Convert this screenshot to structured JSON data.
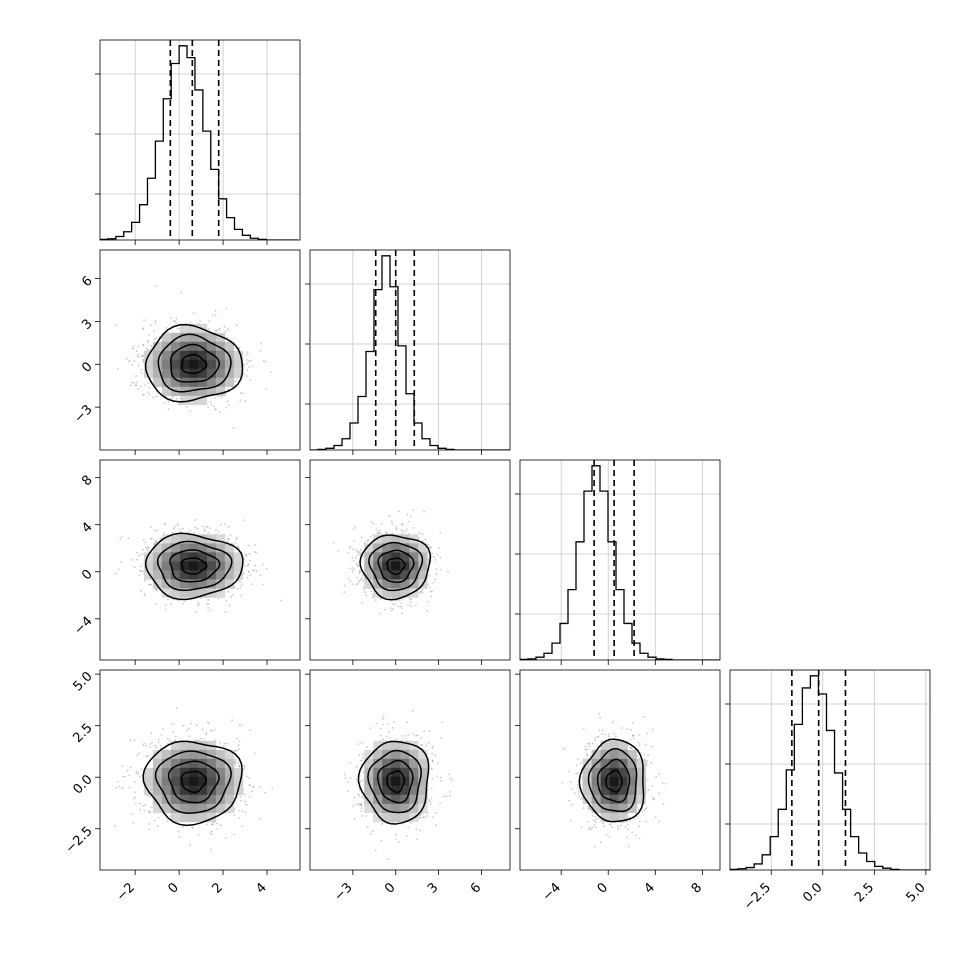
{
  "chart_data": {
    "type": "corner",
    "title": "",
    "parameters": [
      {
        "name": "",
        "xlim": [
          -3.6,
          5.5
        ],
        "ticks": [
          -2,
          0,
          2,
          4
        ],
        "tick_labels": [
          "−2",
          "0",
          "2",
          "4"
        ],
        "quantiles": [
          -0.4,
          0.6,
          1.8
        ]
      },
      {
        "name": "",
        "xlim": [
          -6.0,
          8.0
        ],
        "ticks": [
          -3,
          0,
          3,
          6
        ],
        "tick_labels": [
          "−3",
          "0",
          "3",
          "6"
        ],
        "quantiles": [
          -1.4,
          0.0,
          1.3
        ]
      },
      {
        "name": "",
        "xlim": [
          -7.5,
          9.5
        ],
        "ticks": [
          -4,
          0,
          4,
          8
        ],
        "tick_labels": [
          "−4",
          "0",
          "4",
          "8"
        ],
        "quantiles": [
          -1.2,
          0.5,
          2.2
        ]
      },
      {
        "name": "",
        "xlim": [
          -4.5,
          5.2
        ],
        "ticks": [
          -2.5,
          0.0,
          2.5,
          5.0
        ],
        "tick_labels": [
          "−2.5",
          "0.0",
          "2.5",
          "5.0"
        ],
        "quantiles": [
          -1.5,
          -0.2,
          1.1
        ]
      }
    ],
    "histograms": [
      {
        "param": 0,
        "edges_lo": -3.6,
        "bin_width": 0.36,
        "counts": [
          1,
          2,
          6,
          14,
          30,
          60,
          105,
          168,
          240,
          300,
          330,
          310,
          255,
          185,
          120,
          70,
          38,
          18,
          8,
          3,
          1,
          0,
          0,
          0,
          0
        ]
      },
      {
        "param": 1,
        "edges_lo": -6.0,
        "bin_width": 0.56,
        "counts": [
          0,
          1,
          3,
          8,
          20,
          48,
          95,
          175,
          285,
          345,
          290,
          185,
          100,
          48,
          20,
          8,
          3,
          1,
          0,
          0,
          0,
          0,
          0,
          0,
          0
        ]
      },
      {
        "param": 2,
        "edges_lo": -7.5,
        "bin_width": 0.68,
        "counts": [
          1,
          2,
          5,
          12,
          30,
          65,
          125,
          210,
          300,
          345,
          300,
          210,
          125,
          65,
          30,
          12,
          5,
          2,
          1,
          0,
          0,
          0,
          0,
          0,
          0
        ]
      },
      {
        "param": 3,
        "edges_lo": -4.5,
        "bin_width": 0.39,
        "counts": [
          1,
          2,
          4,
          10,
          25,
          55,
          100,
          165,
          240,
          300,
          320,
          290,
          230,
          160,
          100,
          55,
          28,
          14,
          6,
          3,
          1,
          0,
          0,
          0,
          0
        ]
      }
    ],
    "pairs": [
      {
        "x_param": 0,
        "y_param": 1,
        "center": [
          0.65,
          0.0
        ],
        "sigma": [
          1.1,
          1.3
        ]
      },
      {
        "x_param": 0,
        "y_param": 2,
        "center": [
          0.65,
          0.5
        ],
        "sigma": [
          1.1,
          1.35
        ]
      },
      {
        "x_param": 1,
        "y_param": 2,
        "center": [
          0.0,
          0.5
        ],
        "sigma": [
          1.2,
          1.35
        ]
      },
      {
        "x_param": 0,
        "y_param": 3,
        "center": [
          0.65,
          -0.2
        ],
        "sigma": [
          1.1,
          1.0
        ]
      },
      {
        "x_param": 1,
        "y_param": 3,
        "center": [
          0.0,
          -0.2
        ],
        "sigma": [
          1.2,
          1.0
        ]
      },
      {
        "x_param": 2,
        "y_param": 3,
        "center": [
          0.5,
          -0.2
        ],
        "sigma": [
          1.35,
          1.0
        ]
      }
    ],
    "contour_levels_sigma": [
      0.5,
      1.0,
      1.5,
      2.0
    ],
    "grid": true,
    "colors": {
      "points": "#9e9e9e",
      "density_dark": "#1a1a1a",
      "line": "#000000",
      "grid": "#c8c8c8"
    }
  }
}
